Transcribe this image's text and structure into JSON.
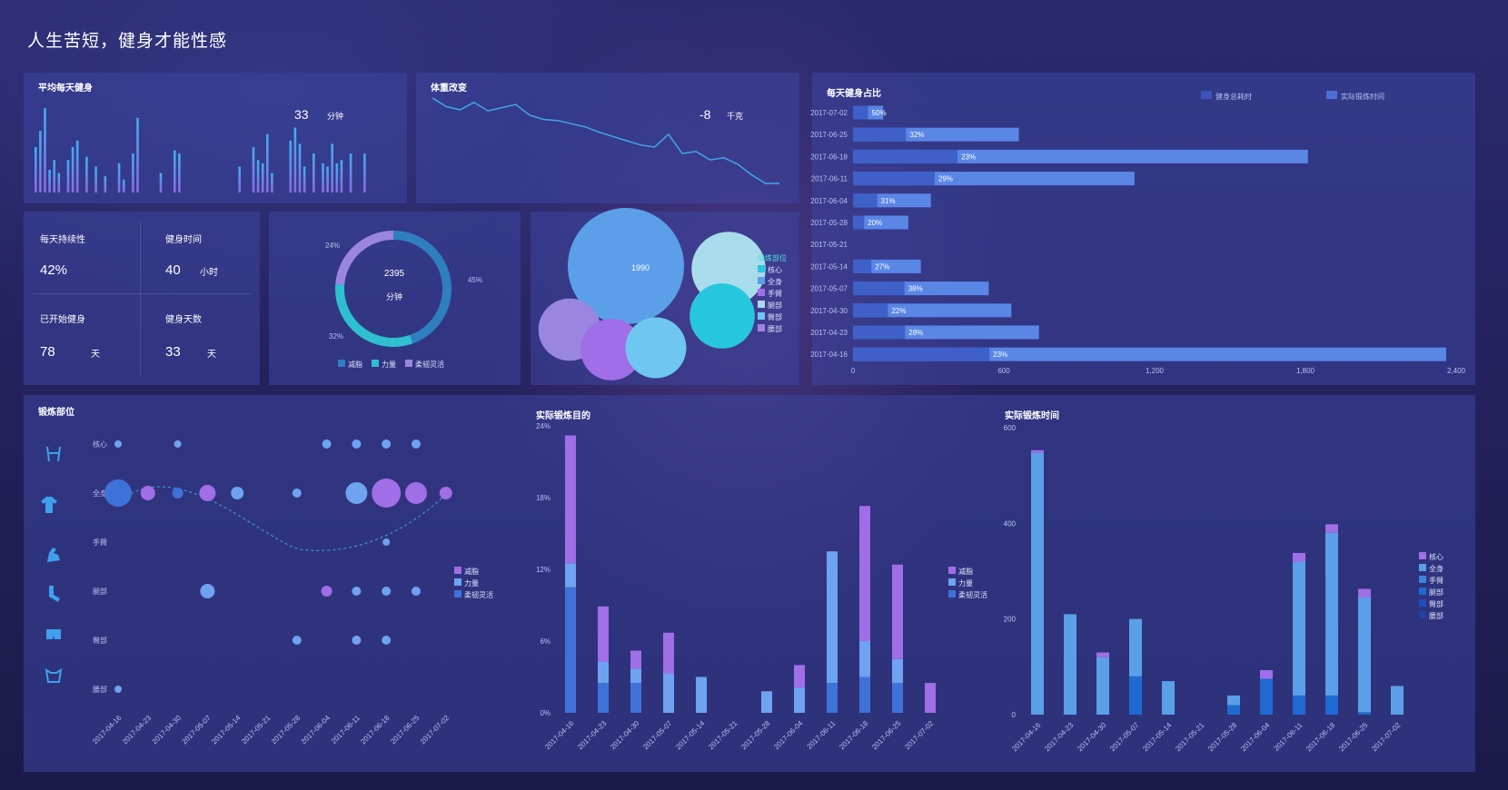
{
  "page_title": "人生苦短，健身才能性感",
  "colors": {
    "purple": "#9c6ee6",
    "light_blue": "#6fa2f0",
    "mid_blue": "#3f72d8",
    "line": "#3fa6e8",
    "panel": "#3c46a0"
  },
  "avg_daily": {
    "title": "平均每天健身",
    "value": "33",
    "unit": "分钟"
  },
  "weight": {
    "title": "体重改变",
    "value": "-8",
    "unit": "千克"
  },
  "stats": {
    "persistence_label": "每天持续性",
    "persistence_value": "42%",
    "time_label": "健身时间",
    "time_value": "40",
    "time_unit": "小时",
    "started_label": "已开始健身",
    "started_value": "78",
    "started_unit": "天",
    "days_label": "健身天数",
    "days_value": "33",
    "days_unit": "天"
  },
  "donut": {
    "center_value": "2395",
    "center_unit": "分钟",
    "pct_top": "24%",
    "pct_right": "45%",
    "pct_left": "32%",
    "legend": [
      "减脂",
      "力量",
      "柔韧灵活"
    ]
  },
  "bubble": {
    "center_value": "1990",
    "legend_title": "锻炼部位",
    "legend": [
      "核心",
      "全身",
      "手臂",
      "腿部",
      "臀部",
      "腰部"
    ]
  },
  "ratio_chart": {
    "title": "每天健身占比",
    "legend": [
      "健身总耗时",
      "实际锻炼时间"
    ]
  },
  "body_parts": {
    "title": "锻炼部位",
    "rows": [
      "核心",
      "全身",
      "手臂",
      "腿部",
      "臀部",
      "腰部"
    ],
    "legend": [
      "减脂",
      "力量",
      "柔韧灵活"
    ]
  },
  "goal_chart": {
    "title": "实际锻炼目的",
    "legend": [
      "减脂",
      "力量",
      "柔韧灵活"
    ]
  },
  "time_chart": {
    "title": "实际锻炼时间",
    "legend": [
      "核心",
      "全身",
      "手臂",
      "腿部",
      "臀部",
      "腰部"
    ]
  },
  "chart_data": [
    {
      "type": "bar",
      "title": "平均每天健身",
      "values": [
        14,
        19,
        26,
        7,
        10,
        6,
        0,
        10,
        14,
        16,
        0,
        11,
        0,
        8,
        0,
        5,
        0,
        0,
        9,
        4,
        0,
        12,
        23,
        0,
        0,
        0,
        0,
        6,
        0,
        0,
        13,
        12,
        0,
        0,
        0,
        0,
        0,
        0,
        0,
        0,
        0,
        0,
        0,
        0,
        8,
        0,
        0,
        14,
        10,
        9,
        18,
        6,
        0,
        0,
        0,
        16,
        20,
        15,
        8,
        0,
        12,
        0,
        9,
        8,
        15,
        9,
        10,
        0,
        12,
        0,
        0,
        12
      ],
      "values_secondary": [
        8,
        10,
        12,
        4,
        6,
        3,
        0,
        5,
        7,
        8,
        0,
        6,
        0,
        4,
        0,
        3,
        0,
        0,
        5,
        2,
        0,
        6,
        10,
        0,
        0,
        0,
        0,
        3,
        0,
        0,
        6,
        6,
        0,
        0,
        0,
        0,
        0,
        0,
        0,
        0,
        0,
        0,
        0,
        0,
        4,
        0,
        0,
        7,
        5,
        4,
        9,
        3,
        0,
        0,
        0,
        8,
        10,
        7,
        4,
        0,
        6,
        0,
        4,
        4,
        7,
        4,
        5,
        0,
        6,
        0,
        0,
        6
      ]
    },
    {
      "type": "line",
      "title": "体重改变",
      "y": [
        0,
        -0.8,
        -1.1,
        -0.4,
        -1.2,
        -0.9,
        -0.6,
        -1.6,
        -2.0,
        -2.1,
        -2.4,
        -2.7,
        -3.2,
        -3.6,
        -4.0,
        -4.4,
        -4.6,
        -3.4,
        -5.2,
        -5.0,
        -5.8,
        -5.6,
        -6.2,
        -7.2,
        -8.0,
        -8.0
      ]
    },
    {
      "type": "pie",
      "title": "",
      "values": [
        45,
        32,
        24
      ],
      "labels": [
        "减脂",
        "力量",
        "柔韧灵活"
      ]
    },
    {
      "type": "scatter",
      "title": "",
      "values": [
        1990,
        620,
        480,
        440,
        430,
        420
      ],
      "labels": [
        "核心",
        "全身",
        "手臂",
        "腿部",
        "臀部",
        "腰部"
      ]
    },
    {
      "type": "bar",
      "title": "每天健身占比",
      "categories": [
        "2017-07-02",
        "2017-06-25",
        "2017-06-18",
        "2017-06-11",
        "2017-06-04",
        "2017-05-28",
        "2017-05-21",
        "2017-05-14",
        "2017-05-07",
        "2017-04-30",
        "2017-04-23",
        "2017-04-16"
      ],
      "series": [
        {
          "name": "健身总耗时",
          "values": [
            120,
            660,
            1810,
            1120,
            310,
            220,
            0,
            270,
            540,
            630,
            740,
            2360
          ]
        },
        {
          "name": "实际锻炼时间",
          "values": [
            60,
            211,
            416,
            325,
            96,
            44,
            0,
            73,
            205,
            139,
            207,
            543
          ]
        }
      ],
      "labels": [
        "50%",
        "32%",
        "23%",
        "29%",
        "31%",
        "20%",
        "",
        "27%",
        "38%",
        "22%",
        "28%",
        "23%"
      ],
      "xticks": [
        "0",
        "600",
        "1,200",
        "1,800",
        "2,400"
      ],
      "xlim": [
        0,
        2400
      ]
    },
    {
      "type": "scatter",
      "title": "锻炼部位",
      "x": [
        "2017-04-16",
        "2017-04-23",
        "2017-04-30",
        "2017-05-07",
        "2017-05-14",
        "2017-05-21",
        "2017-05-28",
        "2017-06-04",
        "2017-06-11",
        "2017-06-18",
        "2017-06-25",
        "2017-07-02"
      ],
      "rows": [
        "核心",
        "全身",
        "手臂",
        "腿部",
        "臀部",
        "腰部"
      ]
    },
    {
      "type": "bar",
      "title": "实际锻炼目的",
      "categories": [
        "2017-04-16",
        "2017-04-23",
        "2017-04-30",
        "2017-05-07",
        "2017-05-14",
        "2017-05-21",
        "2017-05-28",
        "2017-06-04",
        "2017-06-11",
        "2017-06-18",
        "2017-06-25",
        "2017-07-02"
      ],
      "series": [
        {
          "name": "柔韧灵活",
          "values": [
            10.5,
            2.5,
            2.5,
            0,
            0,
            0,
            0,
            0,
            2.5,
            3,
            2.5,
            0
          ]
        },
        {
          "name": "力量",
          "values": [
            2,
            1.8,
            1.2,
            3.3,
            3,
            0,
            1.8,
            2.1,
            11,
            3,
            2,
            0
          ]
        },
        {
          "name": "减脂",
          "values": [
            10.7,
            4.6,
            1.5,
            3.4,
            0,
            0,
            0,
            1.9,
            0,
            11.3,
            7.9,
            2.5
          ]
        }
      ],
      "yticks": [
        "0%",
        "6%",
        "12%",
        "18%",
        "24%"
      ],
      "ylim": [
        0,
        24
      ]
    },
    {
      "type": "bar",
      "title": "实际锻炼时间",
      "categories": [
        "2017-04-16",
        "2017-04-23",
        "2017-04-30",
        "2017-05-07",
        "2017-05-14",
        "2017-05-21",
        "2017-05-28",
        "2017-06-04",
        "2017-06-11",
        "2017-06-18",
        "2017-06-25",
        "2017-07-02"
      ],
      "series": [
        {
          "name": "核心",
          "values": [
            5,
            0,
            10,
            0,
            0,
            0,
            0,
            18,
            18,
            18,
            18,
            0
          ]
        },
        {
          "name": "全身",
          "values": [
            548,
            210,
            120,
            120,
            70,
            0,
            20,
            0,
            280,
            340,
            240,
            60
          ]
        },
        {
          "name": "手臂",
          "values": [
            0,
            0,
            0,
            0,
            0,
            0,
            0,
            0,
            0,
            0,
            0,
            0
          ]
        },
        {
          "name": "腿部",
          "values": [
            0,
            0,
            0,
            80,
            0,
            0,
            20,
            75,
            40,
            40,
            5,
            0
          ]
        },
        {
          "name": "臀部",
          "values": [
            0,
            0,
            0,
            0,
            0,
            0,
            0,
            0,
            0,
            0,
            0,
            0
          ]
        },
        {
          "name": "腰部",
          "values": [
            0,
            0,
            0,
            0,
            0,
            0,
            0,
            0,
            0,
            0,
            0,
            0
          ]
        }
      ],
      "yticks": [
        "0",
        "200",
        "400",
        "600"
      ],
      "ylim": [
        0,
        600
      ]
    }
  ]
}
